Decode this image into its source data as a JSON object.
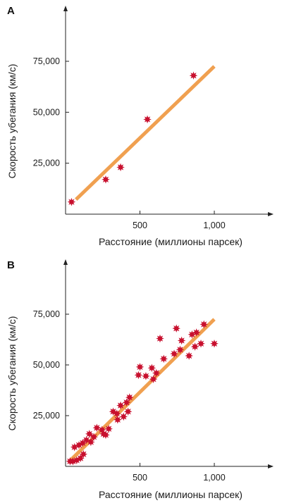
{
  "chart_data": [
    {
      "type": "scatter",
      "panel_label": "A",
      "xlabel": "Расстояние (миллионы парсек)",
      "ylabel": "Скорость убегания (км/с)",
      "x_ticks": [
        {
          "value": 500,
          "label": "500"
        },
        {
          "value": 1000,
          "label": "1,000"
        }
      ],
      "y_ticks": [
        {
          "value": 25000,
          "label": "25,000"
        },
        {
          "value": 50000,
          "label": "50,000"
        },
        {
          "value": 75000,
          "label": "75,000"
        }
      ],
      "xlim": [
        0,
        1400
      ],
      "ylim": [
        0,
        100000
      ],
      "grid": false,
      "colors": {
        "points": "#c8102e",
        "fit_line": "#f0a050",
        "axis": "#222222"
      },
      "points": [
        {
          "x": 40,
          "y": 6000
        },
        {
          "x": 270,
          "y": 17000
        },
        {
          "x": 370,
          "y": 23000
        },
        {
          "x": 550,
          "y": 46500
        },
        {
          "x": 860,
          "y": 68000
        }
      ],
      "fit_line": [
        [
          70,
          7200
        ],
        [
          1000,
          72500
        ]
      ]
    },
    {
      "type": "scatter",
      "panel_label": "B",
      "xlabel": "Расстояние (миллионы парсек)",
      "ylabel": "Скорость убегания (км/с)",
      "x_ticks": [
        {
          "value": 500,
          "label": "500"
        },
        {
          "value": 1000,
          "label": "1,000"
        }
      ],
      "y_ticks": [
        {
          "value": 25000,
          "label": "25,000"
        },
        {
          "value": 50000,
          "label": "50,000"
        },
        {
          "value": 75000,
          "label": "75,000"
        }
      ],
      "xlim": [
        0,
        1400
      ],
      "ylim": [
        0,
        100000
      ],
      "grid": false,
      "colors": {
        "points": "#c8102e",
        "fit_line": "#f0a050",
        "axis": "#222222"
      },
      "points": [
        {
          "x": 30,
          "y": 2500
        },
        {
          "x": 50,
          "y": 2500
        },
        {
          "x": 75,
          "y": 3000
        },
        {
          "x": 100,
          "y": 4000
        },
        {
          "x": 120,
          "y": 6000
        },
        {
          "x": 60,
          "y": 9500
        },
        {
          "x": 90,
          "y": 10500
        },
        {
          "x": 115,
          "y": 11500
        },
        {
          "x": 140,
          "y": 13000
        },
        {
          "x": 160,
          "y": 16000
        },
        {
          "x": 170,
          "y": 12000
        },
        {
          "x": 190,
          "y": 14500
        },
        {
          "x": 210,
          "y": 19000
        },
        {
          "x": 245,
          "y": 18000
        },
        {
          "x": 255,
          "y": 16000
        },
        {
          "x": 270,
          "y": 15500
        },
        {
          "x": 290,
          "y": 18500
        },
        {
          "x": 320,
          "y": 27000
        },
        {
          "x": 345,
          "y": 26000
        },
        {
          "x": 350,
          "y": 23000
        },
        {
          "x": 370,
          "y": 30000
        },
        {
          "x": 390,
          "y": 24500
        },
        {
          "x": 410,
          "y": 31500
        },
        {
          "x": 420,
          "y": 27000
        },
        {
          "x": 430,
          "y": 34000
        },
        {
          "x": 490,
          "y": 45000
        },
        {
          "x": 500,
          "y": 49000
        },
        {
          "x": 540,
          "y": 44500
        },
        {
          "x": 580,
          "y": 48500
        },
        {
          "x": 590,
          "y": 43000
        },
        {
          "x": 610,
          "y": 46000
        },
        {
          "x": 635,
          "y": 63000
        },
        {
          "x": 660,
          "y": 53000
        },
        {
          "x": 730,
          "y": 55500
        },
        {
          "x": 745,
          "y": 68000
        },
        {
          "x": 770,
          "y": 57500
        },
        {
          "x": 780,
          "y": 62000
        },
        {
          "x": 830,
          "y": 54500
        },
        {
          "x": 850,
          "y": 65000
        },
        {
          "x": 870,
          "y": 59000
        },
        {
          "x": 880,
          "y": 66000
        },
        {
          "x": 910,
          "y": 60500
        },
        {
          "x": 930,
          "y": 70000
        },
        {
          "x": 1000,
          "y": 60500
        }
      ],
      "fit_line": [
        [
          30,
          2800
        ],
        [
          1000,
          72500
        ]
      ]
    }
  ]
}
